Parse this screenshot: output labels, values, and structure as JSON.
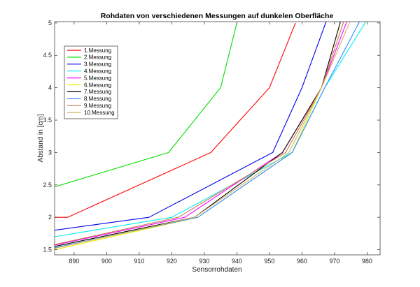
{
  "chart_data": {
    "type": "line",
    "title": "Rohdaten von verschiedenen Messungen auf dunkelen Oberfläche",
    "xlabel": "Sensorrohdaten",
    "ylabel": "Abstand in [cm]",
    "xlim": [
      884,
      984
    ],
    "ylim": [
      1.42,
      5.02
    ],
    "xticks": [
      890,
      900,
      910,
      920,
      930,
      940,
      950,
      960,
      970,
      980
    ],
    "yticks": [
      1.5,
      2,
      2.5,
      3,
      3.5,
      4,
      4.5,
      5
    ],
    "grid": false,
    "legend_position": "top-left",
    "series": [
      {
        "name": "1.Messung",
        "color": "#ff0000",
        "points": [
          [
            884,
            2.0
          ],
          [
            888,
            2.0
          ],
          [
            932,
            3.0
          ],
          [
            950,
            4.0
          ],
          [
            958,
            5.0
          ]
        ]
      },
      {
        "name": "2.Messung",
        "color": "#00dd00",
        "points": [
          [
            884,
            2.47
          ],
          [
            919,
            3.0
          ],
          [
            935,
            4.0
          ],
          [
            940,
            5.0
          ]
        ]
      },
      {
        "name": "3.Messung",
        "color": "#0000ee",
        "points": [
          [
            884,
            1.8
          ],
          [
            913,
            2.0
          ],
          [
            951,
            3.0
          ],
          [
            960,
            4.0
          ],
          [
            968,
            5.1
          ]
        ]
      },
      {
        "name": "4.Messung",
        "color": "#00eeee",
        "points": [
          [
            884,
            1.7
          ],
          [
            920,
            2.0
          ],
          [
            957,
            3.0
          ],
          [
            967,
            4.0
          ],
          [
            980,
            5.05
          ]
        ]
      },
      {
        "name": "5.Messung",
        "color": "#ff00ff",
        "points": [
          [
            884,
            1.57
          ],
          [
            924,
            2.0
          ],
          [
            954,
            3.0
          ],
          [
            966,
            4.0
          ],
          [
            974,
            5.05
          ]
        ]
      },
      {
        "name": "6.Messung",
        "color": "#eeee00",
        "points": [
          [
            884,
            1.5
          ],
          [
            928,
            2.0
          ],
          [
            957,
            3.0
          ],
          [
            966,
            4.0
          ],
          [
            972,
            5.05
          ]
        ]
      },
      {
        "name": "7.Messung",
        "color": "#000000",
        "points": [
          [
            884,
            1.55
          ],
          [
            927,
            2.0
          ],
          [
            954,
            3.0
          ],
          [
            966,
            4.0
          ],
          [
            972,
            5.05
          ]
        ]
      },
      {
        "name": "8.Messung",
        "color": "#2e8bff",
        "points": [
          [
            884,
            1.53
          ],
          [
            928,
            2.0
          ],
          [
            957,
            3.0
          ],
          [
            967,
            4.0
          ],
          [
            978,
            5.05
          ]
        ]
      },
      {
        "name": "9.Messung",
        "color": "#c87a4a",
        "points": [
          [
            884,
            1.58
          ],
          [
            922,
            2.0
          ],
          [
            955,
            3.0
          ],
          [
            966,
            4.0
          ],
          [
            973,
            5.05
          ]
        ]
      },
      {
        "name": "10.Messung",
        "color": "#d4b36a",
        "points": [
          [
            884,
            1.52
          ],
          [
            927,
            2.0
          ],
          [
            956,
            3.0
          ],
          [
            966,
            4.0
          ],
          [
            975,
            5.05
          ]
        ]
      }
    ]
  }
}
